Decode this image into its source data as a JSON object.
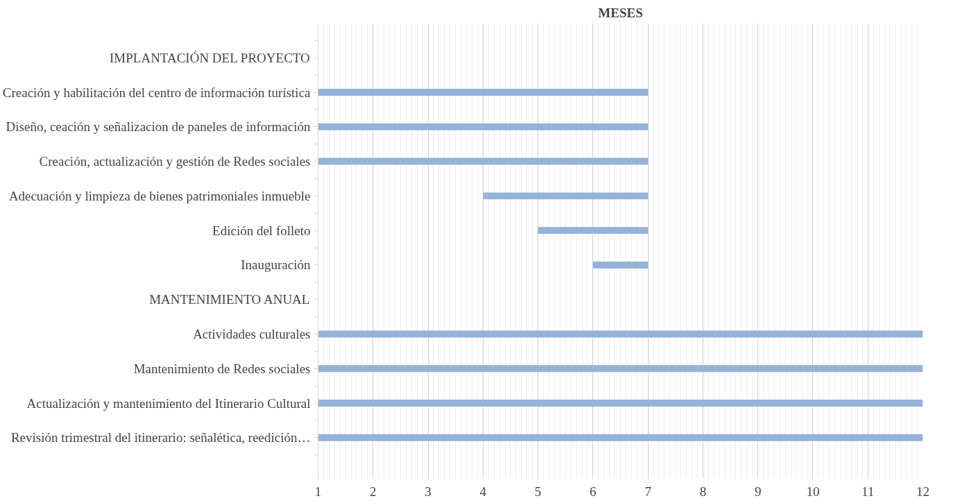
{
  "chart_data": {
    "type": "bar",
    "orientation": "horizontal",
    "title": "MESES",
    "categories": [
      "IMPLANTACIÓN DEL PROYECTO",
      "Creación y habilitación del centro de información turística",
      "Diseño, ceación y señalizacion de paneles de información",
      "Creación, actualización y gestión de Redes sociales",
      "Adecuación y limpieza de bienes patrimoniales inmueble",
      "Edición del folleto",
      "Inauguración",
      "MANTENIMIENTO ANUAL",
      "Actividades culturales",
      "Mantenimiento de Redes sociales",
      "Actualización y mantenimiento del Itinerario Cultural",
      "Revisión trimestral del itinerario: señalética, reedición…"
    ],
    "base": [
      null,
      1,
      1,
      1,
      4,
      5,
      6,
      null,
      1,
      1,
      1,
      1
    ],
    "values": [
      null,
      6,
      6,
      6,
      3,
      2,
      1,
      null,
      11,
      11,
      11,
      11
    ],
    "color": "#95b3d7",
    "xlim": [
      1,
      12
    ],
    "xticks": [
      1,
      2,
      3,
      4,
      5,
      6,
      7,
      8,
      9,
      10,
      11,
      12
    ],
    "grid": "x"
  }
}
